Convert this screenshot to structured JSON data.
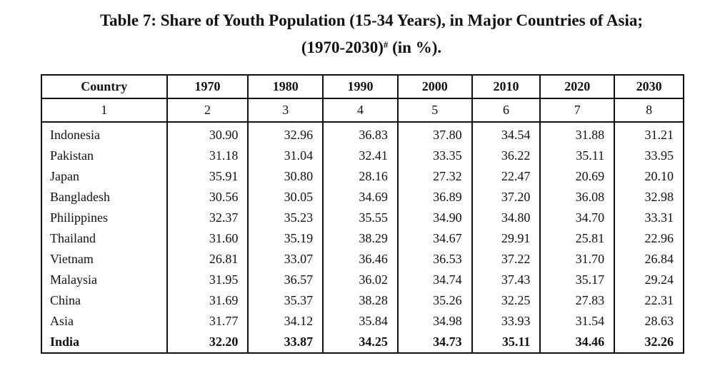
{
  "title": {
    "line1": "Table 7: Share of Youth Population (15-34 Years), in Major Countries of Asia;",
    "line2_main": "(1970-2030)",
    "line2_sup": "#",
    "line2_end": " (in %)."
  },
  "table": {
    "headers": [
      "Country",
      "1970",
      "1980",
      "1990",
      "2000",
      "2010",
      "2020",
      "2030"
    ],
    "index_row": [
      "1",
      "2",
      "3",
      "4",
      "5",
      "6",
      "7",
      "8"
    ],
    "rows": [
      [
        "Indonesia",
        "30.90",
        "32.96",
        "36.83",
        "37.80",
        "34.54",
        "31.88",
        "31.21"
      ],
      [
        "Pakistan",
        "31.18",
        "31.04",
        "32.41",
        "33.35",
        "36.22",
        "35.11",
        "33.95"
      ],
      [
        "Japan",
        "35.91",
        "30.80",
        "28.16",
        "27.32",
        "22.47",
        "20.69",
        "20.10"
      ],
      [
        "Bangladesh",
        "30.56",
        "30.05",
        "34.69",
        "36.89",
        "37.20",
        "36.08",
        "32.98"
      ],
      [
        "Philippines",
        "32.37",
        "35.23",
        "35.55",
        "34.90",
        "34.80",
        "34.70",
        "33.31"
      ],
      [
        "Thailand",
        "31.60",
        "35.19",
        "38.29",
        "34.67",
        "29.91",
        "25.81",
        "22.96"
      ],
      [
        "Vietnam",
        "26.81",
        "33.07",
        "36.46",
        "36.53",
        "37.22",
        "31.70",
        "26.84"
      ],
      [
        "Malaysia",
        "31.95",
        "36.57",
        "36.02",
        "34.74",
        "37.43",
        "35.17",
        "29.24"
      ],
      [
        "China",
        "31.69",
        "35.37",
        "38.28",
        "35.26",
        "32.25",
        "27.83",
        "22.31"
      ],
      [
        "Asia",
        "31.77",
        "34.12",
        "35.84",
        "34.98",
        "33.93",
        "31.54",
        "28.63"
      ],
      [
        "India",
        "32.20",
        "33.87",
        "34.25",
        "34.73",
        "35.11",
        "34.46",
        "32.26"
      ]
    ]
  }
}
